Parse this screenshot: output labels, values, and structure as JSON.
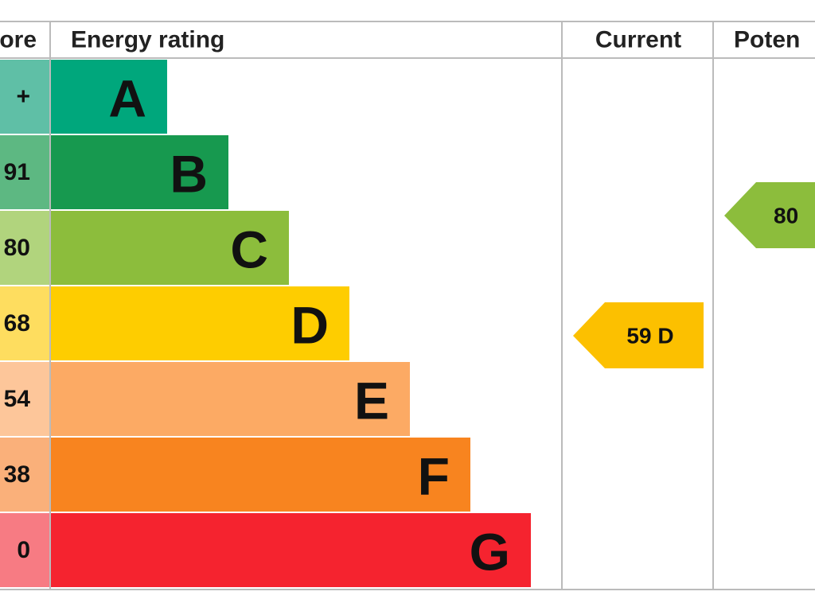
{
  "header": {
    "score": "ore",
    "rating": "Energy rating",
    "current": "Current",
    "potential": "Poten"
  },
  "rows": [
    {
      "score": "+",
      "letter": "A"
    },
    {
      "score": "91",
      "letter": "B"
    },
    {
      "score": "80",
      "letter": "C"
    },
    {
      "score": "68",
      "letter": "D"
    },
    {
      "score": "54",
      "letter": "E"
    },
    {
      "score": "38",
      "letter": "F"
    },
    {
      "score": "0",
      "letter": "G"
    }
  ],
  "current": "59 D",
  "potential": "80"
}
